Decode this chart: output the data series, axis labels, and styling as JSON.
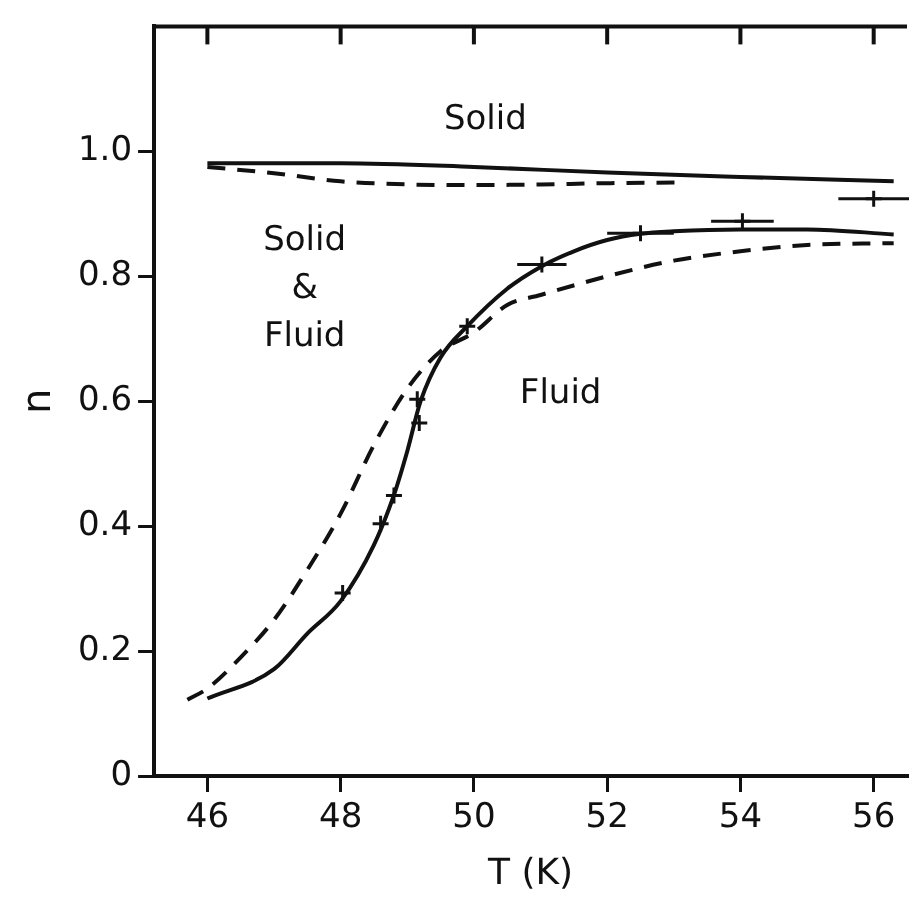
{
  "chart_data": {
    "type": "line",
    "xlabel": "T (K)",
    "ylabel": "n",
    "xlim": [
      45.2,
      56.5
    ],
    "xticks": [
      46,
      48,
      50,
      52,
      54,
      56
    ],
    "ylim": [
      0,
      1.2
    ],
    "yticks": [
      0,
      0.2,
      0.4,
      0.6,
      0.8,
      {
        "value": 1,
        "label": "1.0"
      }
    ],
    "grid": false,
    "legend": false,
    "annotations": [
      "Solid",
      "Solid\n&\nFluid",
      "Fluid"
    ],
    "series": [
      {
        "color": "#111111",
        "line_style": "solid",
        "marker": "none",
        "x": [
          46,
          48,
          50,
          52,
          54,
          56.3
        ],
        "values": [
          0.981,
          0.981,
          0.975,
          0.966,
          0.959,
          0.952
        ]
      },
      {
        "color": "#111111",
        "line_style": "dashed",
        "marker": "none",
        "x": [
          46,
          47,
          48,
          49,
          50,
          51,
          52,
          53.1
        ],
        "values": [
          0.975,
          0.965,
          0.952,
          0.947,
          0.946,
          0.947,
          0.949,
          0.95
        ]
      },
      {
        "color": "#111111",
        "line_style": "solid",
        "marker": "none",
        "x": [
          46,
          47,
          47.5,
          48,
          48.5,
          48.8,
          49,
          49.2,
          49.5,
          49.9,
          50.5,
          51,
          51.5,
          52,
          52.5,
          53,
          54,
          55,
          56.3
        ],
        "values": [
          0.124,
          0.171,
          0.228,
          0.28,
          0.37,
          0.45,
          0.52,
          0.6,
          0.67,
          0.72,
          0.78,
          0.815,
          0.84,
          0.858,
          0.868,
          0.872,
          0.875,
          0.875,
          0.867
        ]
      },
      {
        "color": "#111111",
        "line_style": "dashed",
        "marker": "none",
        "x": [
          45.7,
          46,
          46.5,
          47,
          47.5,
          48,
          48.5,
          49,
          49.5,
          50,
          50.5,
          51,
          52,
          53,
          54,
          55,
          56.3
        ],
        "values": [
          0.122,
          0.14,
          0.19,
          0.25,
          0.33,
          0.42,
          0.53,
          0.62,
          0.68,
          0.71,
          0.754,
          0.77,
          0.8,
          0.825,
          0.84,
          0.85,
          0.853
        ]
      },
      {
        "type": "scatter",
        "color": "#111111",
        "marker": "cross",
        "x": [
          48.03,
          48.6,
          48.8,
          49.18,
          49.15,
          49.9,
          51.02,
          52.5,
          54.03,
          56.0
        ],
        "values": [
          0.293,
          0.404,
          0.449,
          0.565,
          0.603,
          0.72,
          0.819,
          0.869,
          0.888,
          0.924
        ],
        "xerrors": [
          null,
          null,
          null,
          null,
          null,
          null,
          0.37,
          0.5,
          0.47,
          0.53
        ]
      }
    ]
  }
}
